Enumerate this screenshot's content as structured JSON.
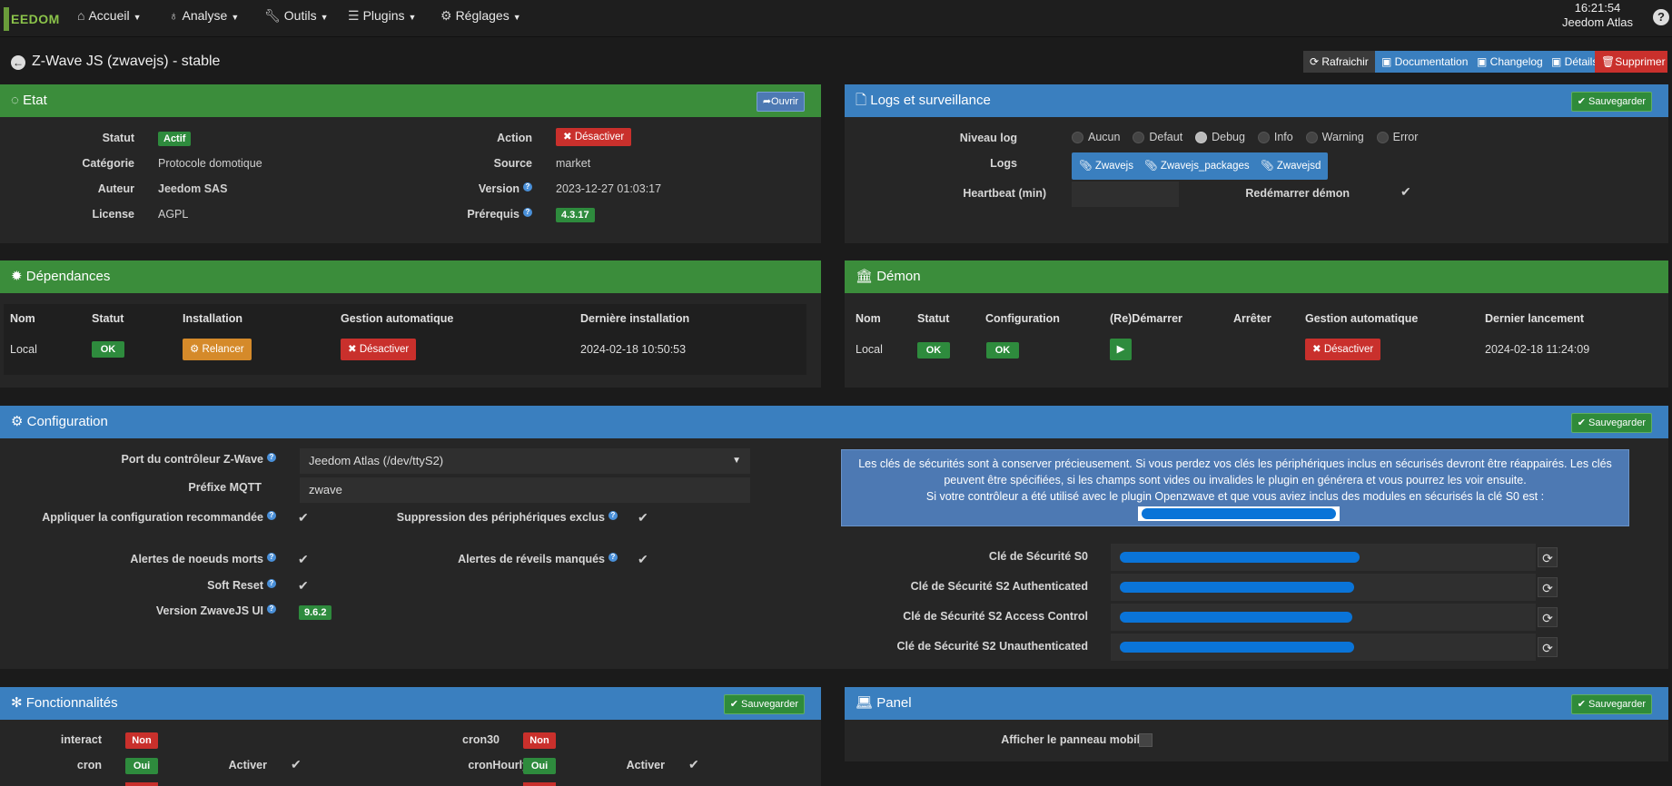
{
  "nav": {
    "logo": "EEDOM",
    "items": [
      {
        "label": "Accueil"
      },
      {
        "label": "Analyse"
      },
      {
        "label": "Outils"
      },
      {
        "label": "Plugins"
      },
      {
        "label": "Réglages"
      }
    ],
    "time": "16:21:54",
    "box": "Jeedom Atlas",
    "help": "?"
  },
  "page": {
    "title": "Z-Wave JS (zwavejs) - stable",
    "buttons": [
      "Rafraichir",
      "Documentation",
      "Changelog",
      "Détails",
      "Supprimer"
    ]
  },
  "etat": {
    "title": "Etat",
    "open": "Ouvrir",
    "statut_label": "Statut",
    "statut": "Actif",
    "categorie_label": "Catégorie",
    "categorie": "Protocole domotique",
    "auteur_label": "Auteur",
    "auteur": "Jeedom SAS",
    "license_label": "License",
    "license": "AGPL",
    "action_label": "Action",
    "action": "Désactiver",
    "source_label": "Source",
    "source": "market",
    "version_label": "Version",
    "version": "2023-12-27 01:03:17",
    "prerequis_label": "Prérequis",
    "prerequis": "4.3.17"
  },
  "logs": {
    "title": "Logs et surveillance",
    "save": "Sauvegarder",
    "niveau_label": "Niveau log",
    "levels": [
      "Aucun",
      "Defaut",
      "Debug",
      "Info",
      "Warning",
      "Error"
    ],
    "selected": "Debug",
    "logs_label": "Logs",
    "log_buttons": [
      "Zwavejs",
      "Zwavejs_packages",
      "Zwavejsd"
    ],
    "heartbeat_label": "Heartbeat (min)",
    "restart_label": "Redémarrer démon"
  },
  "deps": {
    "title": "Dépendances",
    "headers": [
      "Nom",
      "Statut",
      "Installation",
      "Gestion automatique",
      "Dernière installation"
    ],
    "nom": "Local",
    "statut": "OK",
    "install": "Relancer",
    "gestion": "Désactiver",
    "date": "2024-02-18 10:50:53"
  },
  "demon": {
    "title": "Démon",
    "headers": [
      "Nom",
      "Statut",
      "Configuration",
      "(Re)Démarrer",
      "Arrêter",
      "Gestion automatique",
      "Dernier lancement"
    ],
    "nom": "Local",
    "statut": "OK",
    "config": "OK",
    "gestion": "Désactiver",
    "date": "2024-02-18 11:24:09"
  },
  "config": {
    "title": "Configuration",
    "save": "Sauvegarder",
    "port_label": "Port du contrôleur Z-Wave",
    "port": "Jeedom Atlas (/dev/ttyS2)",
    "mqtt_label": "Préfixe MQTT",
    "mqtt": "zwave",
    "apply_label": "Appliquer la configuration recommandée",
    "suppr_label": "Suppression des périphériques exclus",
    "alert_dead_label": "Alertes de noeuds morts",
    "alert_wake_label": "Alertes de réveils manqués",
    "soft_reset_label": "Soft Reset",
    "ui_label": "Version ZwaveJS UI",
    "ui_version": "9.6.2",
    "info_line1": "Les clés de sécurités sont à conserver précieusement. Si vous perdez vos clés les périphériques inclus en sécurisés devront être réappairés. Les clés peuvent être spécifiées, si les champs sont vides ou invalides le plugin en générera et vous pourrez les voir ensuite.",
    "info_line2": "Si votre contrôleur a été utilisé avec le plugin Openzwave et que vous aviez inclus des modules en sécurisés la clé S0 est :",
    "keys": [
      {
        "label": "Clé de Sécurité S0"
      },
      {
        "label": "Clé de Sécurité S2 Authenticated"
      },
      {
        "label": "Clé de Sécurité S2 Access Control"
      },
      {
        "label": "Clé de Sécurité S2 Unauthenticated"
      }
    ]
  },
  "fonc": {
    "title": "Fonctionnalités",
    "save": "Sauvegarder",
    "interact_label": "interact",
    "interact": "Non",
    "cron_label": "cron",
    "cron": "Oui",
    "cron_activer": "Activer",
    "cron30_label": "cron30",
    "cron30": "Non",
    "cronhourly_label": "cronHourly",
    "cronhourly": "Oui",
    "cronhourly_activer": "Activer"
  },
  "panel": {
    "title": "Panel",
    "save": "Sauvegarder",
    "mobile_label": "Afficher le panneau mobile"
  }
}
